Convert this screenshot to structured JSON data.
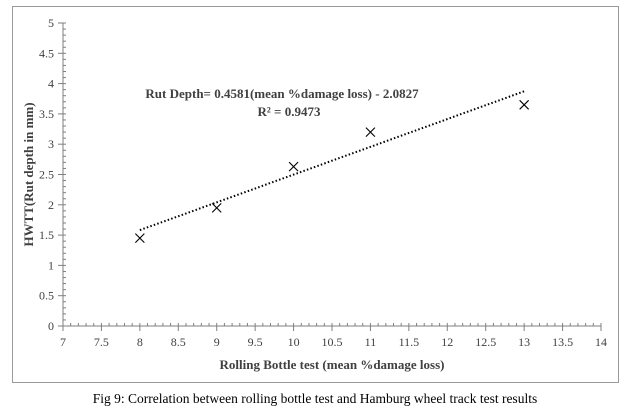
{
  "chart_data": {
    "type": "scatter",
    "title": "",
    "xlabel": "Rolling Bottle test (mean %damage loss)",
    "ylabel": "HWTT(Rut depth in mm)",
    "xlim": [
      7,
      14
    ],
    "ylim": [
      0,
      5
    ],
    "x_ticks": [
      "7",
      "7.5",
      "8",
      "8.5",
      "9",
      "9.5",
      "10",
      "10.5",
      "11",
      "11.5",
      "12",
      "12.5",
      "13",
      "13.5",
      "14"
    ],
    "y_ticks": [
      "0",
      "0.5",
      "1",
      "1.5",
      "2",
      "2.5",
      "3",
      "3.5",
      "4",
      "4.5",
      "5"
    ],
    "grid": false,
    "marker": "x",
    "marker_color": "#000000",
    "points": [
      {
        "x": 8,
        "y": 1.45
      },
      {
        "x": 9,
        "y": 1.95
      },
      {
        "x": 10,
        "y": 2.63
      },
      {
        "x": 11,
        "y": 3.2
      },
      {
        "x": 13,
        "y": 3.65
      }
    ],
    "trendline": {
      "style": "dotted",
      "slope": 0.4581,
      "intercept": -2.0827,
      "x_range": [
        8,
        13
      ],
      "equation": "Rut Depth= 0.4581(mean %damage loss) - 2.0827",
      "r_squared": "R² = 0.9473"
    }
  },
  "caption": "Fig 9: Correlation between rolling bottle test and Hamburg wheel track test results"
}
